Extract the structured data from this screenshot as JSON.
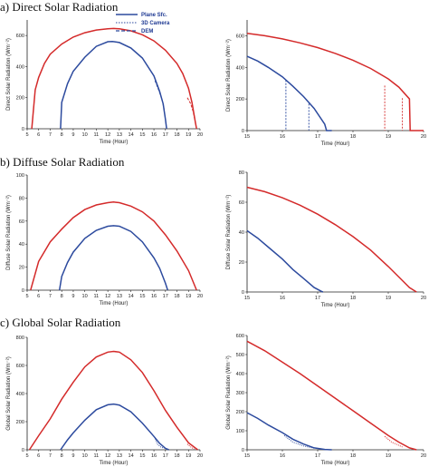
{
  "sections": [
    {
      "title": "a) Direct Solar Radiation"
    },
    {
      "title": "b) Diffuse Solar Radiation"
    },
    {
      "title": "c) Global Solar Radiation"
    }
  ],
  "legend": [
    "Plane Sfc.",
    "3D Camera",
    "DEM"
  ],
  "colors": {
    "red": "#d42a2a",
    "blue": "#2c4a9e",
    "axis": "#222222"
  },
  "chart_data": [
    {
      "type": "line",
      "panel": "a-left",
      "ylabel": "Direct Solar Radiation (Wm⁻²)",
      "xlabel": "Time (Hour)",
      "xlim": [
        5,
        20
      ],
      "ylim": [
        0,
        700
      ],
      "xticks": [
        5,
        6,
        7,
        8,
        9,
        10,
        11,
        12,
        13,
        14,
        15,
        16,
        17,
        18,
        19,
        20
      ],
      "yticks": [
        0,
        200,
        400,
        600
      ],
      "series": [
        {
          "color": "red",
          "dash": "solid",
          "x": [
            5.4,
            5.7,
            6,
            6.5,
            7,
            8,
            9,
            10,
            11,
            12,
            12.5,
            13,
            14,
            15,
            16,
            17,
            18,
            18.5,
            19,
            19.3,
            19.6,
            19.7
          ],
          "y": [
            0,
            250,
            330,
            420,
            480,
            545,
            590,
            618,
            635,
            643,
            645,
            643,
            630,
            605,
            565,
            505,
            420,
            355,
            260,
            170,
            40,
            0
          ]
        },
        {
          "color": "blue",
          "dash": "solid",
          "x": [
            7.9,
            8,
            8.5,
            9,
            10,
            11,
            12,
            12.4,
            13,
            14,
            15,
            16,
            16.5,
            16.8,
            17,
            17.1
          ],
          "y": [
            0,
            170,
            290,
            370,
            460,
            530,
            560,
            562,
            555,
            520,
            455,
            340,
            240,
            160,
            60,
            0
          ]
        },
        {
          "color": "red",
          "dash": "dash",
          "x": [
            18.9,
            19.2,
            19.4,
            19.6
          ],
          "y": [
            200,
            160,
            110,
            40
          ]
        },
        {
          "color": "blue",
          "dash": "dash",
          "x": [
            16.1,
            16.4,
            16.7,
            16.9
          ],
          "y": [
            310,
            250,
            190,
            120
          ]
        }
      ]
    },
    {
      "type": "line",
      "panel": "a-right",
      "ylabel": "Direct Solar Radiation (Wm⁻²)",
      "xlabel": "Time (Hour)",
      "xlim": [
        15,
        20
      ],
      "ylim": [
        0,
        700
      ],
      "xticks": [
        15,
        16,
        17,
        18,
        19,
        20
      ],
      "yticks": [
        0,
        200,
        400,
        600
      ],
      "series": [
        {
          "color": "red",
          "dash": "solid",
          "x": [
            15,
            15.5,
            16,
            16.5,
            17,
            17.5,
            18,
            18.5,
            19,
            19.3,
            19.6,
            19.62,
            20
          ],
          "y": [
            615,
            600,
            580,
            555,
            525,
            488,
            445,
            393,
            327,
            275,
            200,
            0,
            0
          ]
        },
        {
          "color": "blue",
          "dash": "solid",
          "x": [
            15,
            15.3,
            15.6,
            16,
            16.3,
            16.6,
            16.9,
            17.2,
            17.25,
            17.4
          ],
          "y": [
            470,
            440,
            400,
            340,
            280,
            215,
            140,
            40,
            0,
            0
          ]
        },
        {
          "color": "red",
          "dash": "drop",
          "x": [
            18.9,
            19.4
          ],
          "y": [
            285,
            205
          ]
        },
        {
          "color": "blue",
          "dash": "drop",
          "x": [
            16.1,
            16.75
          ],
          "y": [
            320,
            170
          ]
        }
      ]
    },
    {
      "type": "line",
      "panel": "b-left",
      "ylabel": "Diffuse Solar Radiation (Wm⁻²)",
      "xlabel": "Time (Hour)",
      "xlim": [
        5,
        20
      ],
      "ylim": [
        0,
        100
      ],
      "xticks": [
        5,
        6,
        7,
        8,
        9,
        10,
        11,
        12,
        13,
        14,
        15,
        16,
        17,
        18,
        19,
        20
      ],
      "yticks": [
        0,
        20,
        40,
        60,
        80,
        100
      ],
      "series": [
        {
          "color": "red",
          "dash": "solid",
          "x": [
            5.3,
            6,
            7,
            8,
            9,
            10,
            11,
            12,
            12.5,
            13,
            14,
            15,
            16,
            17,
            18,
            19,
            19.7
          ],
          "y": [
            0,
            25,
            42,
            53,
            63,
            70,
            74,
            76,
            76.5,
            76,
            73,
            68,
            60,
            48,
            34,
            17,
            0
          ]
        },
        {
          "color": "blue",
          "dash": "solid",
          "x": [
            7.8,
            8,
            8.5,
            9,
            10,
            11,
            12,
            12.5,
            13,
            14,
            15,
            16,
            16.5,
            17,
            17.2
          ],
          "y": [
            0,
            12,
            24,
            33,
            45,
            52,
            55.5,
            56,
            55.5,
            51,
            42,
            28,
            19,
            6,
            0
          ]
        }
      ]
    },
    {
      "type": "line",
      "panel": "b-right",
      "ylabel": "Diffuse Solar Radiation (Wm⁻²)",
      "xlabel": "Time (Hour)",
      "xlim": [
        15,
        20
      ],
      "ylim": [
        0,
        80
      ],
      "xticks": [
        15,
        16,
        17,
        18,
        19,
        20
      ],
      "yticks": [
        0,
        20,
        40,
        60,
        80
      ],
      "series": [
        {
          "color": "red",
          "dash": "solid",
          "x": [
            15,
            15.5,
            16,
            16.5,
            17,
            17.5,
            18,
            18.5,
            19,
            19.3,
            19.6,
            19.8
          ],
          "y": [
            70,
            67,
            63,
            58,
            52,
            45,
            37,
            28,
            17,
            10,
            3,
            0
          ]
        },
        {
          "color": "blue",
          "dash": "solid",
          "x": [
            15,
            15.3,
            15.6,
            16,
            16.3,
            16.6,
            16.9,
            17.1,
            17.15
          ],
          "y": [
            41,
            36,
            30,
            22,
            15,
            9,
            3,
            0.5,
            0
          ]
        }
      ]
    },
    {
      "type": "line",
      "panel": "c-left",
      "ylabel": "Global Solar Radiation (Wm⁻²)",
      "xlabel": "Time (Hour)",
      "xlim": [
        5,
        20
      ],
      "ylim": [
        0,
        800
      ],
      "xticks": [
        5,
        6,
        7,
        8,
        9,
        10,
        11,
        12,
        13,
        14,
        15,
        16,
        17,
        18,
        19,
        20
      ],
      "yticks": [
        0,
        200,
        400,
        600,
        800
      ],
      "series": [
        {
          "color": "red",
          "dash": "solid",
          "x": [
            5.2,
            6,
            7,
            8,
            9,
            10,
            11,
            12,
            12.5,
            13,
            14,
            15,
            16,
            17,
            18,
            19,
            19.8
          ],
          "y": [
            0,
            100,
            220,
            360,
            480,
            590,
            660,
            695,
            700,
            695,
            640,
            550,
            420,
            280,
            160,
            50,
            0
          ]
        },
        {
          "color": "blue",
          "dash": "solid",
          "x": [
            7.9,
            8.5,
            9,
            10,
            11,
            12,
            12.5,
            13,
            14,
            15,
            16,
            16.5,
            17,
            17.3
          ],
          "y": [
            0,
            70,
            120,
            210,
            285,
            320,
            325,
            318,
            270,
            190,
            95,
            45,
            10,
            0
          ]
        },
        {
          "color": "blue",
          "dash": "dot",
          "x": [
            16.1,
            16.3,
            16.6,
            16.9
          ],
          "y": [
            80,
            40,
            20,
            10
          ]
        },
        {
          "color": "red",
          "dash": "dot",
          "x": [
            18.9,
            19.2,
            19.5
          ],
          "y": [
            40,
            20,
            5
          ]
        }
      ]
    },
    {
      "type": "line",
      "panel": "c-right",
      "ylabel": "Global Solar Radiation (Wm⁻²)",
      "xlabel": "Time (Hour)",
      "xlim": [
        15,
        20
      ],
      "ylim": [
        0,
        600
      ],
      "xticks": [
        15,
        16,
        17,
        18,
        19,
        20
      ],
      "yticks": [
        0,
        100,
        200,
        300,
        400,
        500,
        600
      ],
      "series": [
        {
          "color": "red",
          "dash": "solid",
          "x": [
            15,
            15.5,
            16,
            16.5,
            17,
            17.5,
            18,
            18.5,
            19,
            19.3,
            19.6,
            19.8
          ],
          "y": [
            570,
            520,
            460,
            400,
            335,
            270,
            205,
            140,
            75,
            40,
            10,
            0
          ]
        },
        {
          "color": "blue",
          "dash": "solid",
          "x": [
            15,
            15.3,
            15.6,
            16,
            16.3,
            16.6,
            16.9,
            17.2,
            17.4
          ],
          "y": [
            195,
            165,
            130,
            90,
            55,
            30,
            10,
            2,
            0
          ]
        },
        {
          "color": "blue",
          "dash": "dot",
          "x": [
            16.05,
            16.3,
            16.6,
            16.9
          ],
          "y": [
            75,
            40,
            20,
            8
          ]
        },
        {
          "color": "red",
          "dash": "dot",
          "x": [
            18.9,
            19.1,
            19.4
          ],
          "y": [
            70,
            40,
            15
          ]
        }
      ]
    }
  ]
}
